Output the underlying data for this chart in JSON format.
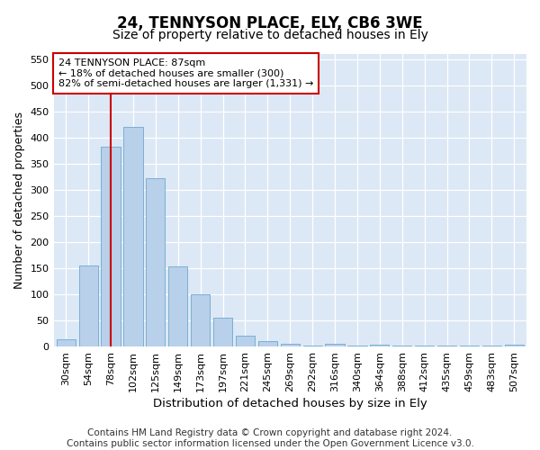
{
  "title": "24, TENNYSON PLACE, ELY, CB6 3WE",
  "subtitle": "Size of property relative to detached houses in Ely",
  "xlabel": "Distribution of detached houses by size in Ely",
  "ylabel": "Number of detached properties",
  "categories": [
    "30sqm",
    "54sqm",
    "78sqm",
    "102sqm",
    "125sqm",
    "149sqm",
    "173sqm",
    "197sqm",
    "221sqm",
    "245sqm",
    "269sqm",
    "292sqm",
    "316sqm",
    "340sqm",
    "364sqm",
    "388sqm",
    "412sqm",
    "435sqm",
    "459sqm",
    "483sqm",
    "507sqm"
  ],
  "values": [
    14,
    156,
    383,
    420,
    322,
    153,
    100,
    55,
    21,
    11,
    5,
    2,
    5,
    1,
    3,
    1,
    1,
    2,
    1,
    1,
    4
  ],
  "bar_color": "#b8d0ea",
  "bar_edge_color": "#7aafd4",
  "vline_x_index": 2,
  "vline_color": "#cc0000",
  "annotation_text": "24 TENNYSON PLACE: 87sqm\n← 18% of detached houses are smaller (300)\n82% of semi-detached houses are larger (1,331) →",
  "annotation_box_facecolor": "#ffffff",
  "annotation_box_edgecolor": "#cc0000",
  "ylim": [
    0,
    560
  ],
  "yticks": [
    0,
    50,
    100,
    150,
    200,
    250,
    300,
    350,
    400,
    450,
    500,
    550
  ],
  "footnote": "Contains HM Land Registry data © Crown copyright and database right 2024.\nContains public sector information licensed under the Open Government Licence v3.0.",
  "bg_color": "#ffffff",
  "plot_bg": "#dce8f5",
  "grid_color": "#ffffff",
  "title_fontsize": 12,
  "subtitle_fontsize": 10,
  "axis_label_fontsize": 9,
  "tick_fontsize": 8,
  "annotation_fontsize": 8,
  "footnote_fontsize": 7.5
}
